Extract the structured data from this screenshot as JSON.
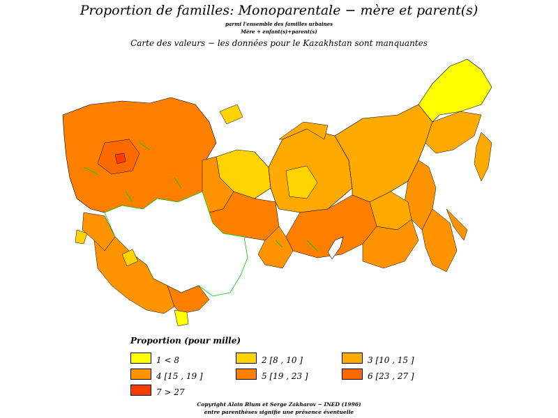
{
  "header": {
    "title": "Proportion de familles: Monoparentale − mère et parent(s)",
    "subtitle1": "parmi l'ensemble des familles urbaines",
    "subtitle2": "Mère + enfant(s)+parent(s)",
    "subtitle3": "Carte des valeurs − les données pour le Kazakhstan sont manquantes"
  },
  "legend": {
    "title": "Proportion (pour mille)",
    "items": [
      {
        "label": "1  <  8",
        "color": "#ffff00"
      },
      {
        "label": "2  [8 ,  10 ]",
        "color": "#ffd400"
      },
      {
        "label": "3  [10 ,  15 ]",
        "color": "#ffaa00"
      },
      {
        "label": "4  [15 ,  19 ]",
        "color": "#ff9400"
      },
      {
        "label": "5  [19 ,  23 ]",
        "color": "#ff7f00"
      },
      {
        "label": "6  [23 ,  27 ]",
        "color": "#ff6a00"
      },
      {
        "label": "7  >  27",
        "color": "#ff3c00"
      }
    ]
  },
  "map": {
    "missing_region": "Kazakhstan",
    "missing_fill": "#ffffff",
    "border_color_missing": "#00cc00",
    "region_border_color": "#000000"
  },
  "footer": {
    "line1": "Copyright Alain Blum et Serge Zakharov − INED (1996)",
    "line2": "entre parenthèses signifie une présence éventuelle"
  }
}
